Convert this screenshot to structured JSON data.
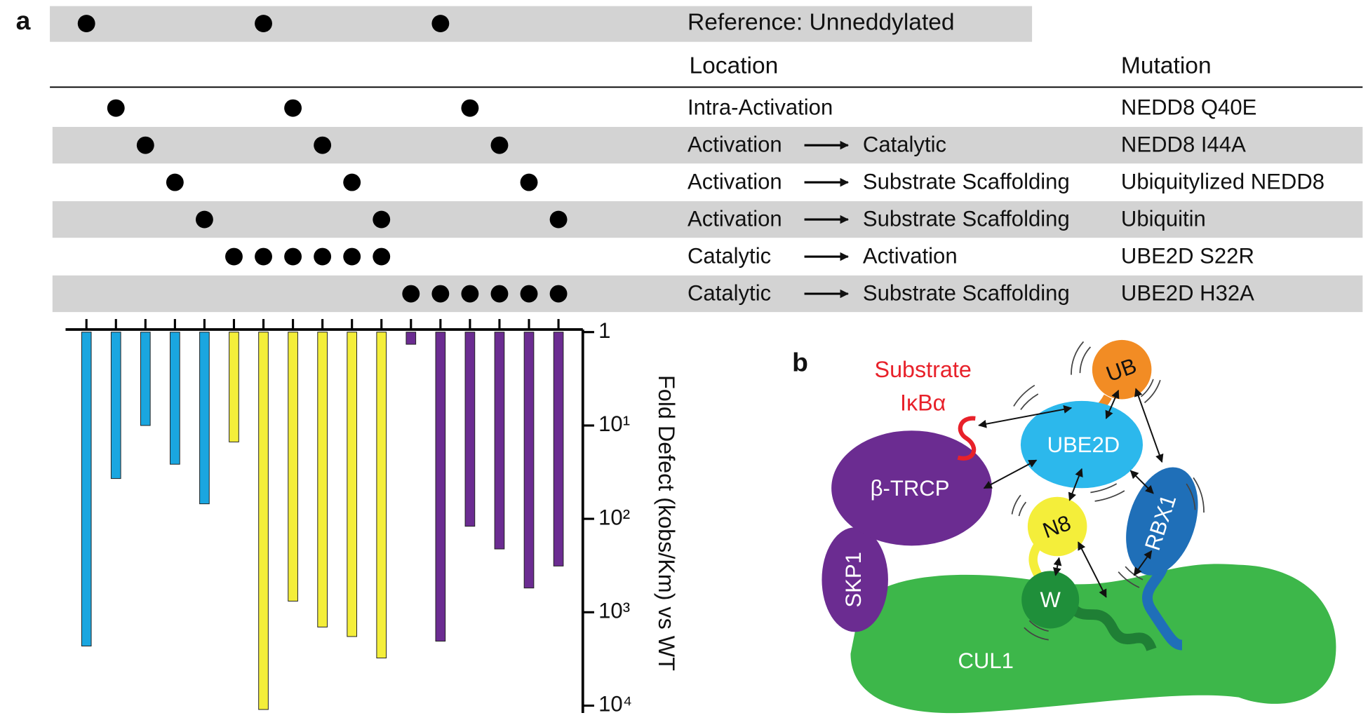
{
  "panel_labels": [
    "a",
    "b"
  ],
  "table": {
    "reference": {
      "label": "Reference: Unneddylated",
      "dots": [
        0,
        6,
        12
      ]
    },
    "headers": [
      "Location",
      "Mutation"
    ],
    "rows": [
      {
        "from": "Intra-Activation",
        "mutation": "NEDD8 Q40E",
        "dots": [
          1,
          7,
          13
        ]
      },
      {
        "from": "Activation",
        "to": "Catalytic",
        "mutation": "NEDD8 I44A",
        "dots": [
          2,
          8,
          14
        ]
      },
      {
        "from": "Activation",
        "to": "Substrate Scaffolding",
        "mutation": "Ubiquitylized NEDD8",
        "dots": [
          3,
          9,
          15
        ]
      },
      {
        "from": "Activation",
        "to": "Substrate Scaffolding",
        "mutation": "Ubiquitin",
        "dots": [
          4,
          10,
          16
        ]
      },
      {
        "from": "Catalytic",
        "to": "Activation",
        "mutation": "UBE2D S22R",
        "dots": [
          5,
          6,
          7,
          8,
          9,
          10
        ]
      },
      {
        "from": "Catalytic",
        "to": "Substrate Scaffolding",
        "mutation": "UBE2D H32A",
        "dots": [
          11,
          12,
          13,
          14,
          15,
          16
        ]
      }
    ]
  },
  "chart_data": {
    "type": "bar",
    "ylabel": "Fold Defect (kobs/Km) vs WT",
    "categories": [
      null,
      null,
      null,
      null,
      null,
      null,
      null,
      null,
      null,
      null,
      null,
      null,
      null,
      null,
      null,
      null,
      null
    ],
    "values": [
      2300,
      37,
      10,
      26,
      69,
      15,
      11000,
      760,
      1440,
      1820,
      3090,
      1.35,
      2040,
      120,
      210,
      550,
      320
    ],
    "colors": [
      "#1aa6e0",
      "#1aa6e0",
      "#1aa6e0",
      "#1aa6e0",
      "#1aa6e0",
      "#f4ee3a",
      "#f4ee3a",
      "#f4ee3a",
      "#f4ee3a",
      "#f4ee3a",
      "#f4ee3a",
      "#6b2c91",
      "#6b2c91",
      "#6b2c91",
      "#6b2c91",
      "#6b2c91",
      "#6b2c91"
    ],
    "log_scale": true,
    "y_direction": "down",
    "y_axis_side": "right",
    "ylim": [
      1,
      12000
    ],
    "yticks": [
      1,
      {
        "value": 10,
        "label": "10¹"
      },
      {
        "value": 100,
        "label": "10²"
      },
      {
        "value": 1000,
        "label": "10³"
      },
      {
        "value": 10000,
        "label": "10⁴"
      }
    ]
  },
  "diagram": {
    "nodes": {
      "substrate": "Substrate",
      "ikba": "IκBα",
      "btrcp": "β-TRCP",
      "skp1": "SKP1",
      "cul1": "CUL1",
      "ube2d": "UBE2D",
      "ub": "UB",
      "rbx1": "RBX1",
      "n8": "N8",
      "w": "W"
    }
  }
}
